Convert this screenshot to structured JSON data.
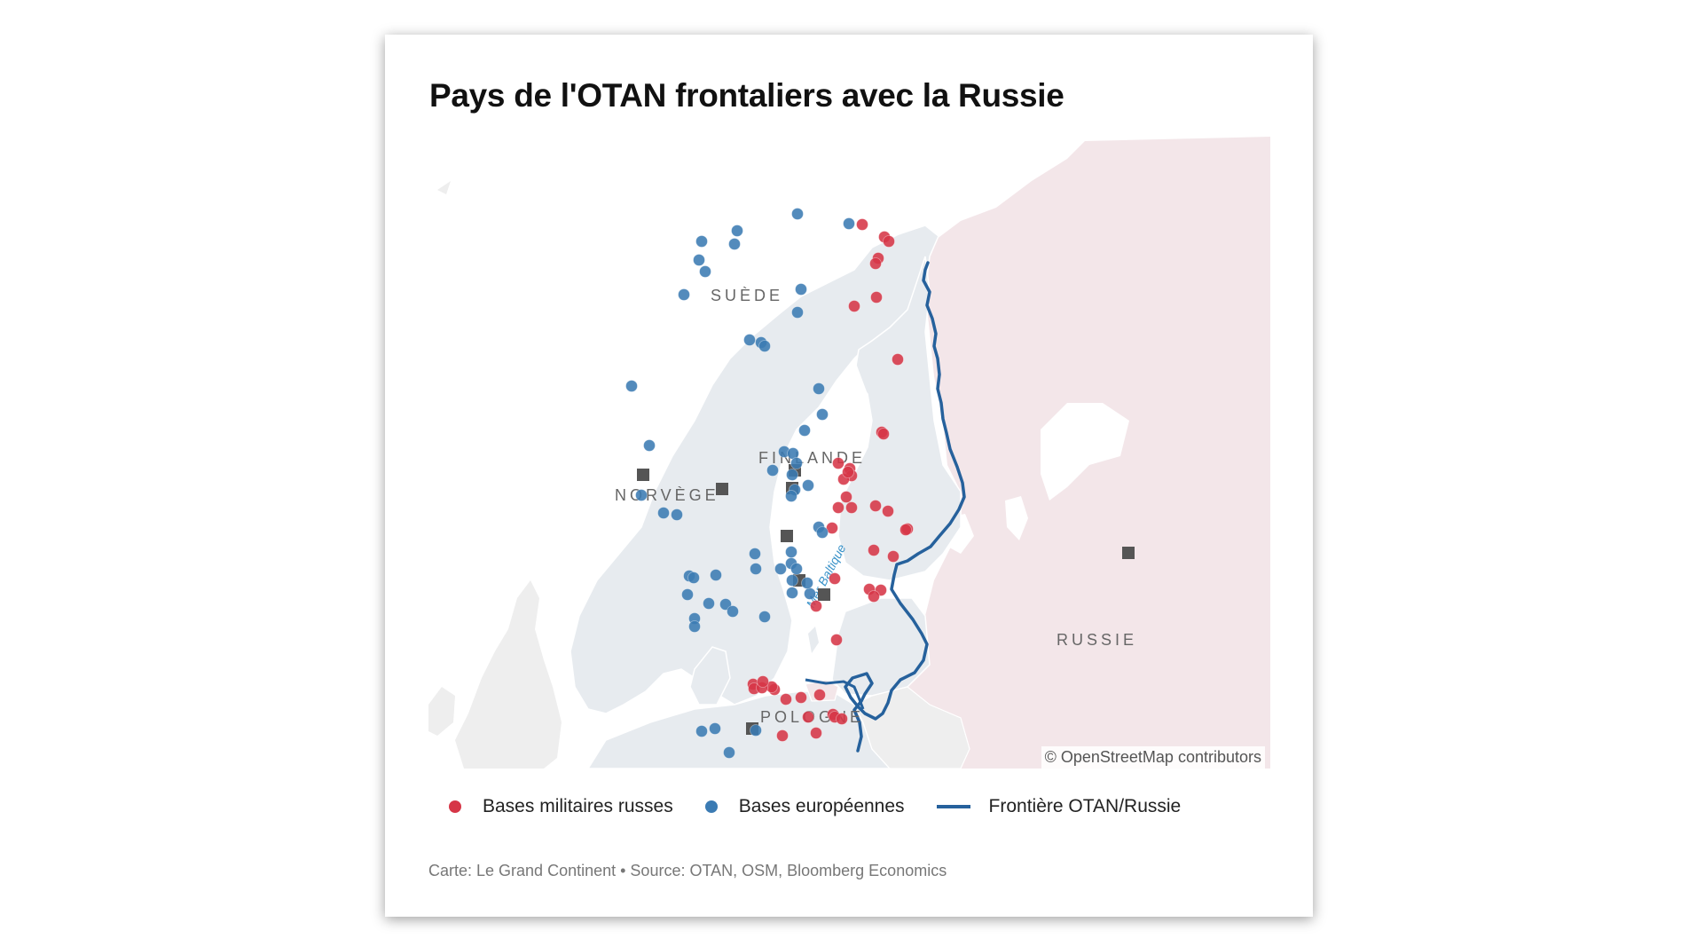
{
  "title": "Pays de l'OTAN frontaliers avec la Russie",
  "map": {
    "countries": [
      {
        "name": "SUÈDE"
      },
      {
        "name": "FINLANDE"
      },
      {
        "name": "NORVÈGE"
      },
      {
        "name": "RUSSIE"
      },
      {
        "name": "POLOGNE"
      }
    ],
    "sea_label": "Mer Baltique",
    "attribution": "© OpenStreetMap contributors",
    "colors": {
      "russia_fill": "#f3e6e9",
      "nato_fill": "#e7ebef",
      "other_fill": "#eeeeee",
      "water": "#ffffff",
      "russian_bases": "#d63647",
      "european_bases": "#3b7bb3",
      "border_line": "#26619c",
      "hq_markers": "#555555"
    }
  },
  "legend": [
    {
      "label": "Bases militaires russes",
      "type": "dot",
      "color": "#d63647"
    },
    {
      "label": "Bases européennes",
      "type": "dot",
      "color": "#3b7bb3"
    },
    {
      "label": "Frontière OTAN/Russie",
      "type": "line",
      "color": "#26619c"
    }
  ],
  "source": "Carte: Le Grand Continent • Source: OTAN, OSM, Bloomberg Economics"
}
